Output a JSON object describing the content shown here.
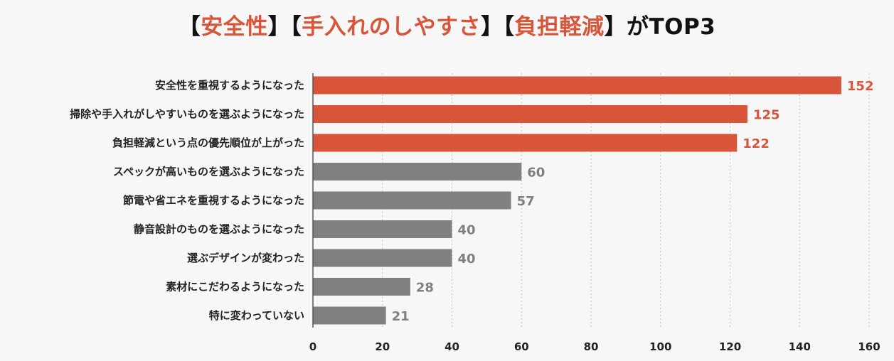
{
  "title": {
    "part1_open": "【",
    "part1": "安全性",
    "part1_close": "】",
    "part2_open": "【",
    "part2": "手入れのしやすさ",
    "part2_close": "】",
    "part3_open": "【",
    "part3": "負担軽減",
    "part3_close": "】",
    "suffix": "がTOP3"
  },
  "colors": {
    "highlight": "#d9553a",
    "normal": "#808080",
    "grid": "#bfbfbf",
    "axis": "#555555"
  },
  "chart_data": {
    "type": "bar",
    "orientation": "horizontal",
    "title": "【安全性】【手入れのしやすさ】【負担軽減】がTOP3",
    "categories": [
      "安全性を重視するようになった",
      "掃除や手入れがしやすいものを選ぶようになった",
      "負担軽減という点の優先順位が上がった",
      "スペックが高いものを選ぶようになった",
      "節電や省エネを重視するようになった",
      "静音設計のものを選ぶようになった",
      "選ぶデザインが変わった",
      "素材にこだわるようになった",
      "特に変わっていない"
    ],
    "values": [
      152,
      125,
      122,
      60,
      57,
      40,
      40,
      28,
      21
    ],
    "highlighted": [
      true,
      true,
      true,
      false,
      false,
      false,
      false,
      false,
      false
    ],
    "xlim": [
      0,
      160
    ],
    "xticks": [
      0,
      20,
      40,
      60,
      80,
      100,
      120,
      140,
      160
    ],
    "grid": "vertical dashed",
    "legend": "none"
  }
}
